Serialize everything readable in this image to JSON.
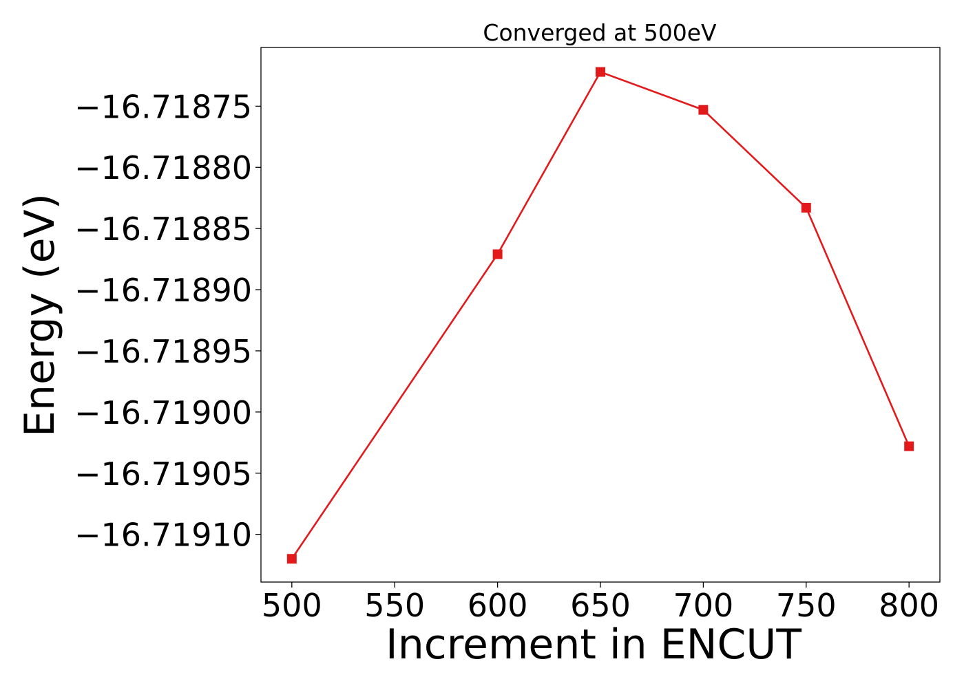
{
  "chart_data": {
    "type": "line",
    "title": "Converged at 500eV",
    "xlabel": "Increment in ENCUT",
    "ylabel": "Energy (eV)",
    "x": [
      500,
      600,
      650,
      700,
      750,
      800
    ],
    "series": [
      {
        "values": [
          -16.71912,
          -16.718871,
          -16.718722,
          -16.718753,
          -16.718833,
          -16.719028
        ],
        "color": "#e31a1c",
        "marker": "square"
      }
    ],
    "xlim": [
      485,
      815
    ],
    "ylim": [
      -16.719139,
      -16.718702
    ],
    "xticks": [
      500,
      550,
      600,
      650,
      700,
      750,
      800
    ],
    "xtick_labels": [
      "500",
      "550",
      "600",
      "650",
      "700",
      "750",
      "800"
    ],
    "yticks": [
      -16.71875,
      -16.7188,
      -16.71885,
      -16.7189,
      -16.71895,
      -16.719,
      -16.71905,
      -16.7191
    ],
    "ytick_labels": [
      "−16.71875",
      "−16.71880",
      "−16.71885",
      "−16.71890",
      "−16.71895",
      "−16.71900",
      "−16.71905",
      "−16.71910"
    ],
    "grid": false,
    "legend": "none"
  }
}
